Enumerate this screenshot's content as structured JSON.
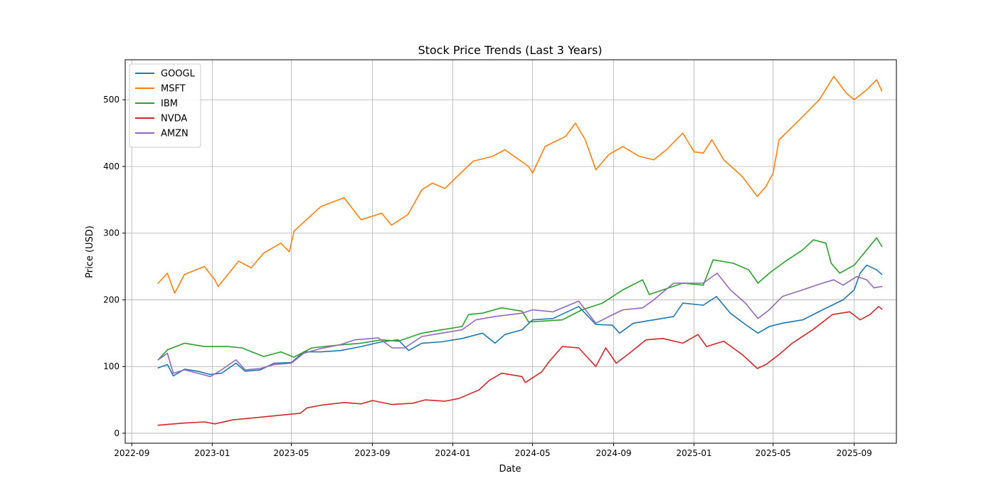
{
  "chart_data": {
    "type": "line",
    "title": "Stock Price Trends (Last 3 Years)",
    "xlabel": "Date",
    "ylabel": "Price (USD)",
    "xlim": [
      "2022-08-22",
      "2025-11-04"
    ],
    "ylim": [
      -15,
      560
    ],
    "x_ticks": [
      "2022-09",
      "2023-01",
      "2023-05",
      "2023-09",
      "2024-01",
      "2024-05",
      "2024-09",
      "2025-01",
      "2025-05",
      "2025-09"
    ],
    "y_ticks": [
      0,
      100,
      200,
      300,
      400,
      500
    ],
    "grid": true,
    "legend_position": "upper-left",
    "series": [
      {
        "name": "GOOGL",
        "color": "#1f77b4",
        "points": [
          [
            "2022-10-11",
            98
          ],
          [
            "2022-10-25",
            103
          ],
          [
            "2022-11-03",
            86
          ],
          [
            "2022-11-20",
            96
          ],
          [
            "2022-12-10",
            93
          ],
          [
            "2022-12-29",
            88
          ],
          [
            "2023-01-15",
            90
          ],
          [
            "2023-02-06",
            105
          ],
          [
            "2023-02-20",
            93
          ],
          [
            "2023-03-15",
            95
          ],
          [
            "2023-04-05",
            105
          ],
          [
            "2023-05-01",
            106
          ],
          [
            "2023-05-20",
            122
          ],
          [
            "2023-06-15",
            122
          ],
          [
            "2023-07-15",
            124
          ],
          [
            "2023-08-15",
            130
          ],
          [
            "2023-09-15",
            137
          ],
          [
            "2023-10-10",
            140
          ],
          [
            "2023-10-26",
            124
          ],
          [
            "2023-11-15",
            135
          ],
          [
            "2023-12-15",
            137
          ],
          [
            "2024-01-15",
            142
          ],
          [
            "2024-02-15",
            150
          ],
          [
            "2024-03-05",
            135
          ],
          [
            "2024-03-20",
            148
          ],
          [
            "2024-04-15",
            155
          ],
          [
            "2024-05-01",
            170
          ],
          [
            "2024-06-01",
            172
          ],
          [
            "2024-07-10",
            190
          ],
          [
            "2024-08-05",
            163
          ],
          [
            "2024-08-30",
            162
          ],
          [
            "2024-09-10",
            150
          ],
          [
            "2024-10-01",
            165
          ],
          [
            "2024-11-01",
            170
          ],
          [
            "2024-12-01",
            175
          ],
          [
            "2024-12-15",
            195
          ],
          [
            "2025-01-15",
            192
          ],
          [
            "2025-02-04",
            205
          ],
          [
            "2025-02-25",
            180
          ],
          [
            "2025-03-20",
            163
          ],
          [
            "2025-04-08",
            150
          ],
          [
            "2025-04-25",
            160
          ],
          [
            "2025-05-15",
            165
          ],
          [
            "2025-06-15",
            170
          ],
          [
            "2025-07-15",
            185
          ],
          [
            "2025-08-15",
            200
          ],
          [
            "2025-09-01",
            215
          ],
          [
            "2025-09-10",
            240
          ],
          [
            "2025-09-20",
            252
          ],
          [
            "2025-10-05",
            245
          ],
          [
            "2025-10-13",
            238
          ]
        ]
      },
      {
        "name": "MSFT",
        "color": "#ff7f0e",
        "points": [
          [
            "2022-10-11",
            225
          ],
          [
            "2022-10-25",
            240
          ],
          [
            "2022-11-05",
            210
          ],
          [
            "2022-11-20",
            238
          ],
          [
            "2022-12-20",
            250
          ],
          [
            "2023-01-05",
            230
          ],
          [
            "2023-01-10",
            220
          ],
          [
            "2023-02-10",
            258
          ],
          [
            "2023-03-01",
            248
          ],
          [
            "2023-03-20",
            270
          ],
          [
            "2023-04-15",
            285
          ],
          [
            "2023-04-28",
            272
          ],
          [
            "2023-05-05",
            303
          ],
          [
            "2023-06-15",
            340
          ],
          [
            "2023-07-20",
            353
          ],
          [
            "2023-08-15",
            320
          ],
          [
            "2023-09-15",
            330
          ],
          [
            "2023-09-30",
            312
          ],
          [
            "2023-10-25",
            328
          ],
          [
            "2023-11-15",
            365
          ],
          [
            "2023-12-01",
            375
          ],
          [
            "2023-12-20",
            367
          ],
          [
            "2024-01-15",
            392
          ],
          [
            "2024-02-01",
            408
          ],
          [
            "2024-03-01",
            415
          ],
          [
            "2024-03-20",
            425
          ],
          [
            "2024-04-25",
            400
          ],
          [
            "2024-05-01",
            390
          ],
          [
            "2024-05-20",
            430
          ],
          [
            "2024-06-20",
            445
          ],
          [
            "2024-07-05",
            465
          ],
          [
            "2024-07-20",
            440
          ],
          [
            "2024-08-05",
            395
          ],
          [
            "2024-08-25",
            418
          ],
          [
            "2024-09-15",
            430
          ],
          [
            "2024-10-10",
            415
          ],
          [
            "2024-11-01",
            410
          ],
          [
            "2024-11-20",
            425
          ],
          [
            "2024-12-15",
            450
          ],
          [
            "2025-01-01",
            422
          ],
          [
            "2025-01-15",
            420
          ],
          [
            "2025-01-28",
            440
          ],
          [
            "2025-02-15",
            410
          ],
          [
            "2025-03-15",
            385
          ],
          [
            "2025-04-07",
            355
          ],
          [
            "2025-04-20",
            370
          ],
          [
            "2025-05-01",
            390
          ],
          [
            "2025-05-10",
            440
          ],
          [
            "2025-06-10",
            470
          ],
          [
            "2025-07-10",
            500
          ],
          [
            "2025-08-01",
            535
          ],
          [
            "2025-08-20",
            510
          ],
          [
            "2025-09-01",
            500
          ],
          [
            "2025-09-20",
            515
          ],
          [
            "2025-10-05",
            530
          ],
          [
            "2025-10-13",
            513
          ]
        ]
      },
      {
        "name": "IBM",
        "color": "#2ca02c",
        "points": [
          [
            "2022-10-11",
            110
          ],
          [
            "2022-10-25",
            125
          ],
          [
            "2022-11-20",
            135
          ],
          [
            "2022-12-20",
            130
          ],
          [
            "2023-01-25",
            130
          ],
          [
            "2023-02-15",
            128
          ],
          [
            "2023-03-20",
            115
          ],
          [
            "2023-04-15",
            122
          ],
          [
            "2023-05-05",
            114
          ],
          [
            "2023-06-01",
            128
          ],
          [
            "2023-07-10",
            132
          ],
          [
            "2023-08-15",
            135
          ],
          [
            "2023-09-15",
            140
          ],
          [
            "2023-10-10",
            138
          ],
          [
            "2023-11-15",
            150
          ],
          [
            "2023-12-15",
            155
          ],
          [
            "2024-01-15",
            160
          ],
          [
            "2024-01-25",
            178
          ],
          [
            "2024-02-15",
            180
          ],
          [
            "2024-03-15",
            188
          ],
          [
            "2024-04-15",
            183
          ],
          [
            "2024-04-25",
            167
          ],
          [
            "2024-05-15",
            168
          ],
          [
            "2024-06-15",
            170
          ],
          [
            "2024-07-15",
            185
          ],
          [
            "2024-08-15",
            195
          ],
          [
            "2024-09-15",
            215
          ],
          [
            "2024-10-15",
            230
          ],
          [
            "2024-10-25",
            208
          ],
          [
            "2024-11-15",
            215
          ],
          [
            "2024-12-15",
            225
          ],
          [
            "2025-01-15",
            222
          ],
          [
            "2025-01-30",
            260
          ],
          [
            "2025-03-01",
            255
          ],
          [
            "2025-03-25",
            245
          ],
          [
            "2025-04-08",
            225
          ],
          [
            "2025-04-25",
            240
          ],
          [
            "2025-05-20",
            258
          ],
          [
            "2025-06-15",
            275
          ],
          [
            "2025-07-01",
            290
          ],
          [
            "2025-07-20",
            285
          ],
          [
            "2025-07-28",
            255
          ],
          [
            "2025-08-10",
            240
          ],
          [
            "2025-09-01",
            252
          ],
          [
            "2025-09-20",
            275
          ],
          [
            "2025-10-05",
            293
          ],
          [
            "2025-10-13",
            280
          ]
        ]
      },
      {
        "name": "NVDA",
        "color": "#d62728",
        "points": [
          [
            "2022-10-11",
            12
          ],
          [
            "2022-11-15",
            15
          ],
          [
            "2022-12-20",
            17
          ],
          [
            "2023-01-05",
            14
          ],
          [
            "2023-02-01",
            20
          ],
          [
            "2023-03-15",
            24
          ],
          [
            "2023-04-15",
            27
          ],
          [
            "2023-05-15",
            30
          ],
          [
            "2023-05-25",
            38
          ],
          [
            "2023-06-15",
            42
          ],
          [
            "2023-07-20",
            46
          ],
          [
            "2023-08-15",
            44
          ],
          [
            "2023-09-01",
            49
          ],
          [
            "2023-10-01",
            43
          ],
          [
            "2023-11-01",
            45
          ],
          [
            "2023-11-20",
            50
          ],
          [
            "2023-12-20",
            48
          ],
          [
            "2024-01-10",
            52
          ],
          [
            "2024-02-10",
            65
          ],
          [
            "2024-02-25",
            79
          ],
          [
            "2024-03-15",
            90
          ],
          [
            "2024-04-15",
            85
          ],
          [
            "2024-04-20",
            76
          ],
          [
            "2024-05-15",
            92
          ],
          [
            "2024-05-25",
            106
          ],
          [
            "2024-06-15",
            130
          ],
          [
            "2024-07-10",
            128
          ],
          [
            "2024-07-25",
            112
          ],
          [
            "2024-08-05",
            100
          ],
          [
            "2024-08-20",
            128
          ],
          [
            "2024-09-05",
            105
          ],
          [
            "2024-09-25",
            120
          ],
          [
            "2024-10-20",
            140
          ],
          [
            "2024-11-15",
            142
          ],
          [
            "2024-12-15",
            135
          ],
          [
            "2025-01-07",
            148
          ],
          [
            "2025-01-20",
            130
          ],
          [
            "2025-02-15",
            138
          ],
          [
            "2025-03-15",
            118
          ],
          [
            "2025-04-07",
            97
          ],
          [
            "2025-04-20",
            103
          ],
          [
            "2025-05-10",
            118
          ],
          [
            "2025-05-30",
            135
          ],
          [
            "2025-06-30",
            155
          ],
          [
            "2025-07-30",
            178
          ],
          [
            "2025-08-25",
            182
          ],
          [
            "2025-09-10",
            170
          ],
          [
            "2025-09-25",
            178
          ],
          [
            "2025-10-08",
            190
          ],
          [
            "2025-10-13",
            186
          ]
        ]
      },
      {
        "name": "AMZN",
        "color": "#9467bd",
        "points": [
          [
            "2022-10-11",
            110
          ],
          [
            "2022-10-25",
            120
          ],
          [
            "2022-11-03",
            90
          ],
          [
            "2022-11-20",
            95
          ],
          [
            "2022-12-10",
            90
          ],
          [
            "2022-12-29",
            85
          ],
          [
            "2023-01-15",
            95
          ],
          [
            "2023-02-06",
            110
          ],
          [
            "2023-02-20",
            95
          ],
          [
            "2023-03-15",
            97
          ],
          [
            "2023-04-05",
            103
          ],
          [
            "2023-05-01",
            105
          ],
          [
            "2023-05-20",
            120
          ],
          [
            "2023-06-15",
            127
          ],
          [
            "2023-07-15",
            133
          ],
          [
            "2023-08-05",
            140
          ],
          [
            "2023-09-10",
            143
          ],
          [
            "2023-10-01",
            128
          ],
          [
            "2023-10-20",
            128
          ],
          [
            "2023-11-15",
            145
          ],
          [
            "2023-12-15",
            150
          ],
          [
            "2024-01-15",
            155
          ],
          [
            "2024-02-05",
            170
          ],
          [
            "2024-03-05",
            175
          ],
          [
            "2024-04-15",
            180
          ],
          [
            "2024-05-01",
            185
          ],
          [
            "2024-06-01",
            182
          ],
          [
            "2024-07-10",
            198
          ],
          [
            "2024-08-05",
            165
          ],
          [
            "2024-08-25",
            175
          ],
          [
            "2024-09-15",
            185
          ],
          [
            "2024-10-15",
            188
          ],
          [
            "2024-11-01",
            200
          ],
          [
            "2024-12-01",
            225
          ],
          [
            "2025-01-15",
            225
          ],
          [
            "2025-02-05",
            240
          ],
          [
            "2025-02-25",
            215
          ],
          [
            "2025-03-20",
            195
          ],
          [
            "2025-04-08",
            172
          ],
          [
            "2025-04-25",
            185
          ],
          [
            "2025-05-15",
            205
          ],
          [
            "2025-06-15",
            215
          ],
          [
            "2025-07-15",
            225
          ],
          [
            "2025-08-01",
            230
          ],
          [
            "2025-08-15",
            222
          ],
          [
            "2025-09-05",
            235
          ],
          [
            "2025-09-20",
            230
          ],
          [
            "2025-10-01",
            218
          ],
          [
            "2025-10-13",
            220
          ]
        ]
      }
    ]
  }
}
